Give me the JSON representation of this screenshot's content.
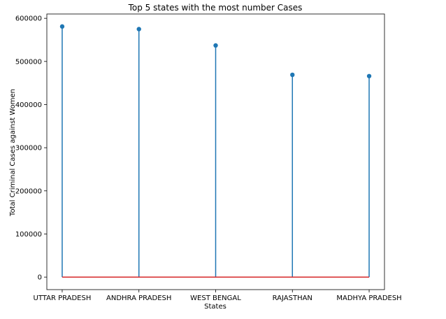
{
  "chart_data": {
    "type": "stem",
    "title": "Top 5 states with the most number Cases",
    "xlabel": "States",
    "ylabel": "Total Criminal Cases against Women",
    "categories": [
      "UTTAR PRADESH",
      "ANDHRA PRADESH",
      "WEST BENGAL",
      "RAJASTHAN",
      "MADHYA PRADESH"
    ],
    "values": [
      581000,
      575000,
      537000,
      469000,
      466000
    ],
    "ylim": [
      -29000,
      610000
    ],
    "yticks": [
      0,
      100000,
      200000,
      300000,
      400000,
      500000,
      600000
    ],
    "ytick_labels": [
      "0",
      "100000",
      "200000",
      "300000",
      "400000",
      "500000",
      "600000"
    ],
    "grid": false,
    "colors": {
      "stem": "#1f77b4",
      "marker": "#1f77b4",
      "baseline": "#d62728"
    }
  }
}
